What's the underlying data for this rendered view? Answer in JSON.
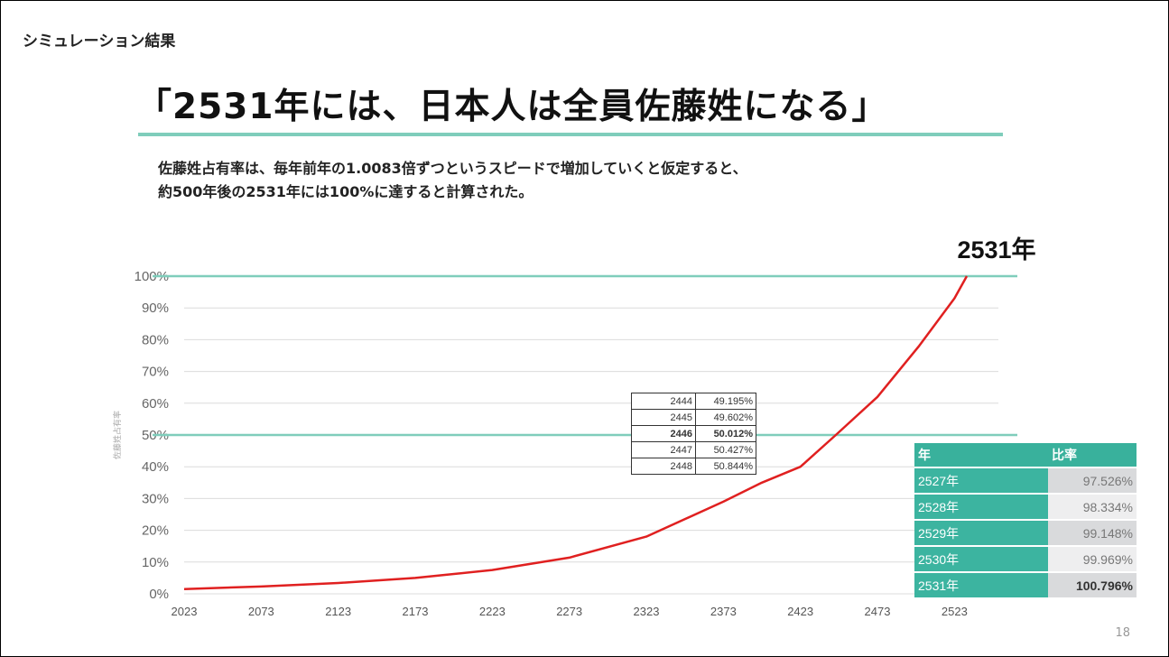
{
  "section_label": "シミュレーション結果",
  "headline": "「2531年には、日本人は全員佐藤姓になる」",
  "description": {
    "line1": "佐藤姓占有率は、毎年前年の1.0083倍ずつというスピードで増加していくと仮定すると、",
    "line2": "約500年後の2531年には100%に達すると計算された。"
  },
  "page_number": "18",
  "colors": {
    "accent": "#7fcdbb",
    "curve": "#e02020",
    "table_header": "#39b19c"
  },
  "chart_data": {
    "type": "line",
    "ylabel": "佐藤姓占有率",
    "y_ticks": [
      "0%",
      "10%",
      "20%",
      "30%",
      "40%",
      "50%",
      "60%",
      "70%",
      "80%",
      "90%",
      "100%"
    ],
    "x_ticks": [
      "2023",
      "2073",
      "2123",
      "2173",
      "2223",
      "2273",
      "2323",
      "2373",
      "2423",
      "2473",
      "2523"
    ],
    "xlim": [
      2023,
      2531
    ],
    "ylim": [
      0,
      100
    ],
    "annotation": "2531年",
    "reference_lines": [
      50,
      100
    ],
    "series": [
      {
        "x": [
          2023,
          2073,
          2123,
          2173,
          2223,
          2273,
          2323,
          2373,
          2398,
          2423,
          2446,
          2473,
          2500,
          2523,
          2531
        ],
        "values": [
          1.5,
          2.3,
          3.4,
          5,
          7.5,
          11.4,
          18,
          29,
          35,
          40,
          50,
          62,
          78,
          93,
          100
        ]
      }
    ],
    "mid_table": [
      {
        "year": "2444",
        "rate": "49.195%"
      },
      {
        "year": "2445",
        "rate": "49.602%"
      },
      {
        "year": "2446",
        "rate": "50.012%"
      },
      {
        "year": "2447",
        "rate": "50.427%"
      },
      {
        "year": "2448",
        "rate": "50.844%"
      }
    ],
    "mid_table_highlight_index": 2,
    "end_table": {
      "headers": [
        "年",
        "比率"
      ],
      "rows": [
        {
          "year": "2527年",
          "rate": "97.526%"
        },
        {
          "year": "2528年",
          "rate": "98.334%"
        },
        {
          "year": "2529年",
          "rate": "99.148%"
        },
        {
          "year": "2530年",
          "rate": "99.969%"
        },
        {
          "year": "2531年",
          "rate": "100.796%"
        }
      ]
    }
  }
}
